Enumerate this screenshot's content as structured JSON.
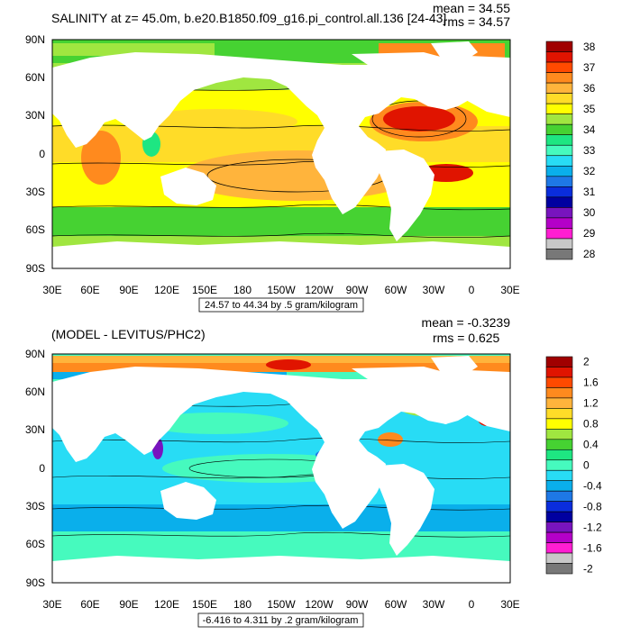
{
  "panels": [
    {
      "title": "SALINITY at z=  45.0m, b.e20.B1850.f09_g16.pi_control.all.136 [24-43]",
      "mean": "mean = 34.55",
      "rms": "rms = 34.57",
      "contour_note": "24.57 to 44.34 by .5 gram/kilogram",
      "colorbar_labels": [
        "38",
        "37",
        "36",
        "35",
        "34",
        "33",
        "32",
        "31",
        "30",
        "29",
        "28"
      ],
      "colorbar_colors": [
        "#a00000",
        "#e01400",
        "#ff4a00",
        "#ff8a1e",
        "#ffb43c",
        "#ffdc28",
        "#ffff00",
        "#a0e640",
        "#46d232",
        "#1ee682",
        "#46fabe",
        "#28dcf5",
        "#0aafeb",
        "#1e78e6",
        "#0a2ddc",
        "#0000a0",
        "#7814be",
        "#b400c8",
        "#ff1ed2",
        "#c8c8c8",
        "#787878"
      ]
    },
    {
      "title": "(MODEL - LEVITUS/PHC2)",
      "mean": "mean = -0.3239",
      "rms": "rms = 0.625",
      "contour_note": "-6.416 to 4.311 by .2 gram/kilogram",
      "colorbar_labels": [
        "2",
        "1.6",
        "1.2",
        "0.8",
        "0.4",
        "0",
        "-0.4",
        "-0.8",
        "-1.2",
        "-1.6",
        "-2"
      ],
      "colorbar_colors": [
        "#a00000",
        "#e01400",
        "#ff4a00",
        "#ff8a1e",
        "#ffb43c",
        "#ffdc28",
        "#ffff00",
        "#a0e640",
        "#46d232",
        "#1ee682",
        "#46fabe",
        "#28dcf5",
        "#0aafeb",
        "#1e78e6",
        "#0a2ddc",
        "#0000a0",
        "#7814be",
        "#b400c8",
        "#ff1ed2",
        "#c8c8c8",
        "#787878"
      ]
    }
  ],
  "lat_labels": [
    "90N",
    "60N",
    "30N",
    "0",
    "30S",
    "60S",
    "90S"
  ],
  "lon_labels": [
    "30E",
    "60E",
    "90E",
    "120E",
    "150E",
    "180",
    "150W",
    "120W",
    "90W",
    "60W",
    "30W",
    "0",
    "30E"
  ],
  "land_color": "#ffffff",
  "frame_color": "#000000"
}
